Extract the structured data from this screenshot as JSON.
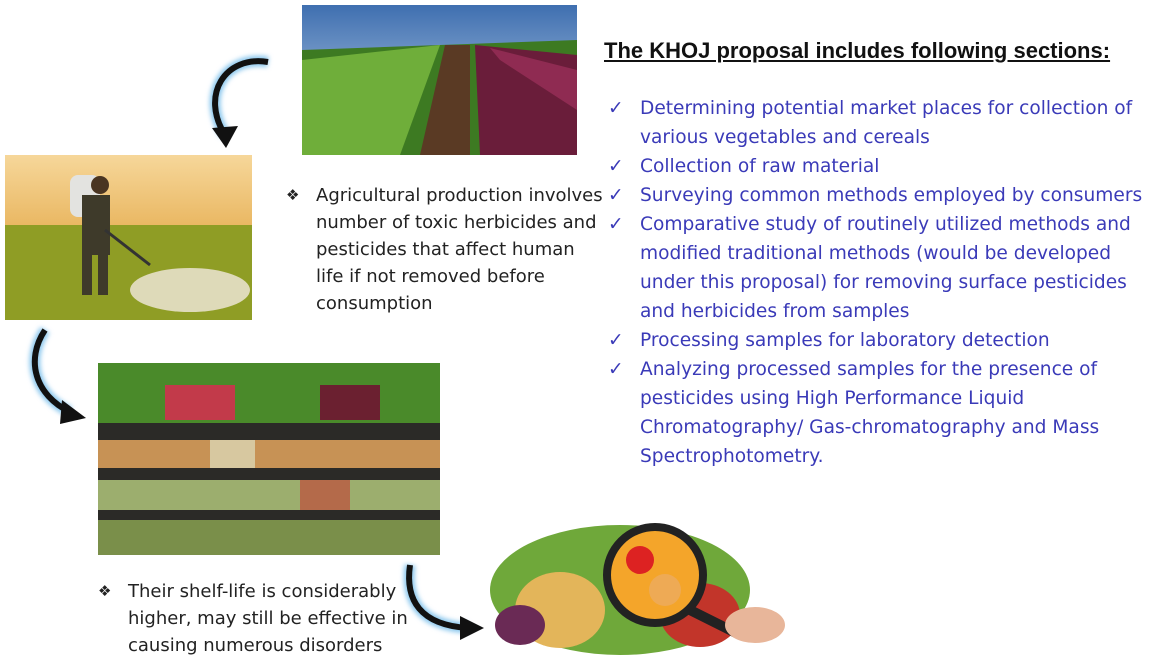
{
  "heading": "The KHOJ proposal includes following sections:",
  "sections": [
    "Determining potential market places for collection of various vegetables and cereals",
    "Collection of raw material",
    "Surveying common methods employed by consumers",
    "Comparative study of routinely utilized methods and modified traditional methods (would be developed under this proposal) for removing surface pesticides and herbicides from samples",
    "Processing samples for laboratory detection",
    "Analyzing processed samples for the presence of pesticides using High Performance Liquid Chromatography/ Gas-chromatography and Mass Spectrophotometry."
  ],
  "notes": [
    "Agricultural production involves number of toxic herbicides and pesticides that affect human life if not removed before consumption",
    "Their shelf-life is considerably higher, may still be effective in causing numerous disorders"
  ]
}
